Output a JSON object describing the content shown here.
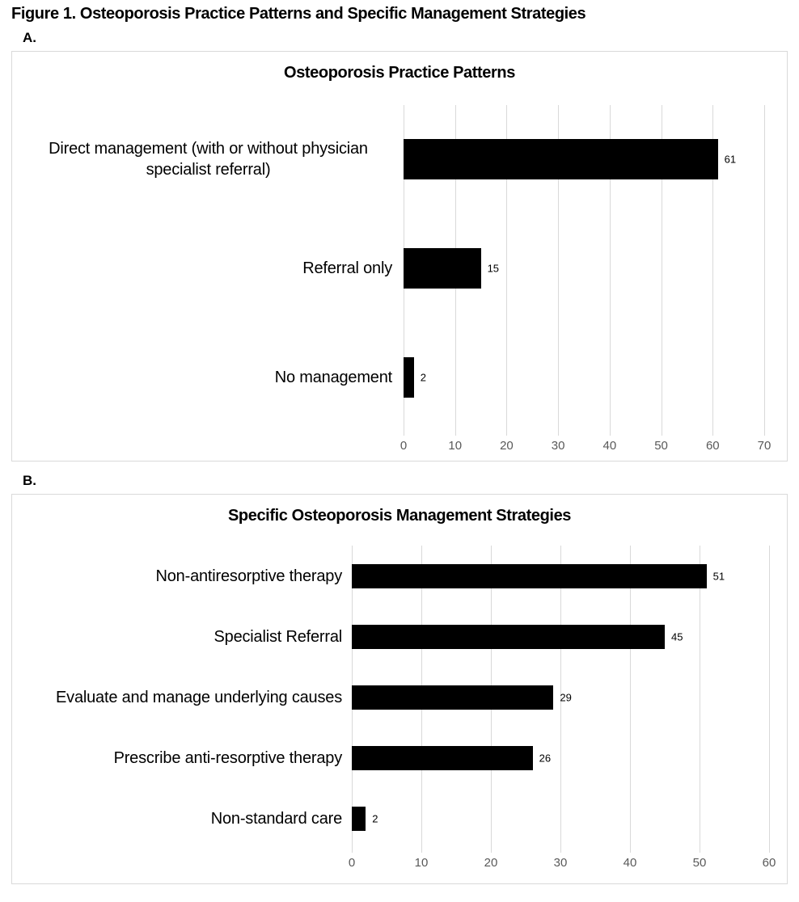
{
  "figure": {
    "title": "Figure 1. Osteoporosis Practice Patterns and Specific Management Strategies",
    "panel_a_label": "A.",
    "panel_b_label": "B."
  },
  "colors": {
    "bar": "#000000",
    "gridline": "#d9d9d9",
    "axis_text": "#595959",
    "panel_border": "#d9d9d9",
    "background": "#ffffff"
  },
  "chart_data": [
    {
      "type": "bar",
      "orientation": "horizontal",
      "title": "Osteoporosis Practice Patterns",
      "categories": [
        "Direct management (with or without physician specialist referral)",
        "Referral only",
        "No management"
      ],
      "values": [
        61,
        15,
        2
      ],
      "value_labels_shown": true,
      "xlim": [
        0,
        70
      ],
      "xticks": [
        0,
        10,
        20,
        30,
        40,
        50,
        60,
        70
      ],
      "xlabel": "",
      "ylabel": "",
      "grid": true,
      "legend": false,
      "bar_color": "#000000"
    },
    {
      "type": "bar",
      "orientation": "horizontal",
      "title": "Specific Osteoporosis Management Strategies",
      "categories": [
        "Non-antiresorptive therapy",
        "Specialist Referral",
        "Evaluate and manage underlying causes",
        "Prescribe anti-resorptive therapy",
        "Non-standard care"
      ],
      "values": [
        51,
        45,
        29,
        26,
        2
      ],
      "value_labels_shown": true,
      "xlim": [
        0,
        60
      ],
      "xticks": [
        0,
        10,
        20,
        30,
        40,
        50,
        60
      ],
      "xlabel": "",
      "ylabel": "",
      "grid": true,
      "legend": false,
      "bar_color": "#000000"
    }
  ]
}
